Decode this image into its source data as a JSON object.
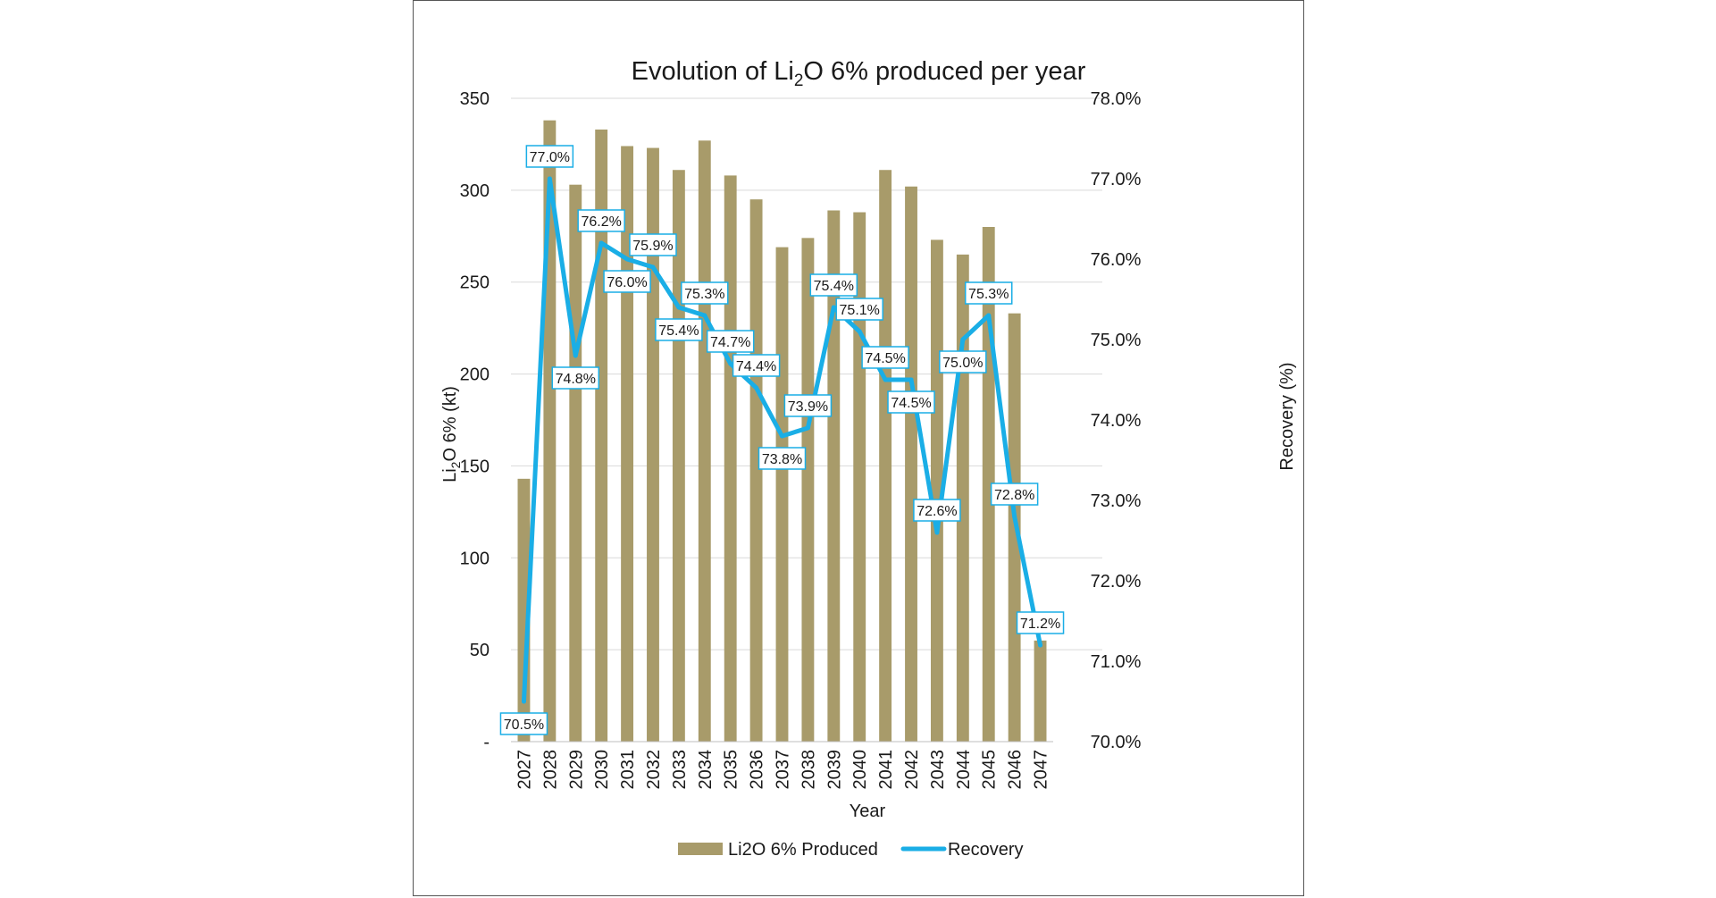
{
  "chart_data": {
    "type": "bar+line",
    "title_main": "Evolution of Li",
    "title_sub": "2",
    "title_rest": "O 6% produced per year",
    "xlabel": "Year",
    "ylabel_main": "Li",
    "ylabel_sub": "2",
    "ylabel_rest": "O 6% (kt)",
    "y2label": "Recovery (%)",
    "ylim": [
      0,
      350
    ],
    "y_ticks": [
      0,
      50,
      100,
      150,
      200,
      250,
      300,
      350
    ],
    "y_tick_labels": [
      "-",
      "50",
      "100",
      "150",
      "200",
      "250",
      "300",
      "350"
    ],
    "y2lim": [
      70,
      78
    ],
    "y2_ticks": [
      70,
      71,
      72,
      73,
      74,
      75,
      76,
      77,
      78
    ],
    "y2_tick_labels": [
      "70.0%",
      "71.0%",
      "72.0%",
      "73.0%",
      "74.0%",
      "75.0%",
      "76.0%",
      "77.0%",
      "78.0%"
    ],
    "categories": [
      "2027",
      "2028",
      "2029",
      "2030",
      "2031",
      "2032",
      "2033",
      "2034",
      "2035",
      "2036",
      "2037",
      "2038",
      "2039",
      "2040",
      "2041",
      "2042",
      "2043",
      "2044",
      "2045",
      "2046",
      "2047"
    ],
    "series": [
      {
        "name": "Li2O 6% Produced",
        "type": "bar",
        "axis": "left",
        "color": "#a89b6a",
        "values": [
          143,
          338,
          303,
          333,
          324,
          323,
          311,
          327,
          308,
          295,
          269,
          274,
          289,
          288,
          311,
          302,
          273,
          265,
          280,
          233,
          55
        ]
      },
      {
        "name": "Recovery",
        "type": "line",
        "axis": "right",
        "color": "#1aaee6",
        "values": [
          70.5,
          77.0,
          74.8,
          76.2,
          76.0,
          75.9,
          75.4,
          75.3,
          74.7,
          74.4,
          73.8,
          73.9,
          75.4,
          75.1,
          74.5,
          74.5,
          72.6,
          75.0,
          75.3,
          72.8,
          71.2
        ],
        "labels": [
          "70.5%",
          "77.0%",
          "74.8%",
          "76.2%",
          "76.0%",
          "75.9%",
          "75.4%",
          "75.3%",
          "74.7%",
          "74.4%",
          "73.8%",
          "73.9%",
          "75.4%",
          "75.1%",
          "74.5%",
          "74.5%",
          "72.6%",
          "75.0%",
          "75.3%",
          "72.8%",
          "71.2%"
        ],
        "label_positions": [
          "below",
          "above",
          "below",
          "above",
          "below",
          "above",
          "below",
          "above",
          "above",
          "above",
          "below",
          "above",
          "above",
          "above",
          "above",
          "below",
          "above",
          "below",
          "above",
          "above",
          "above"
        ]
      }
    ],
    "legend": [
      "Li2O 6% Produced",
      "Recovery"
    ],
    "legend_position": "bottom",
    "grid": true
  }
}
